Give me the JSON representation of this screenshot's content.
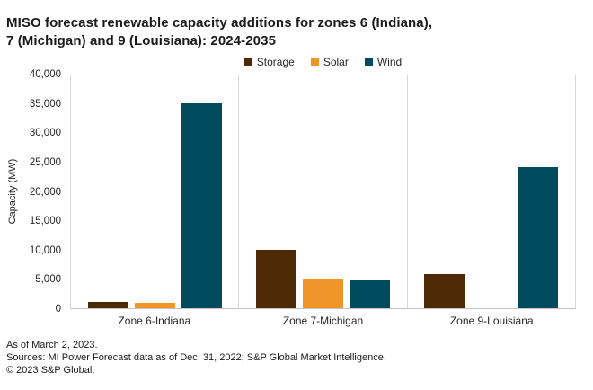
{
  "title": {
    "line1": "MISO forecast renewable capacity additions for zones 6 (Indiana),",
    "line2": "7 (Michigan) and 9 (Louisiana): 2024-2035"
  },
  "chart_data": {
    "type": "bar",
    "title": "MISO forecast renewable capacity additions for zones 6 (Indiana), 7 (Michigan) and 9 (Louisiana): 2024-2035",
    "categories": [
      "Zone 6-Indiana",
      "Zone 7-Michigan",
      "Zone 9-Louisiana"
    ],
    "series": [
      {
        "name": "Storage",
        "color": "#4d2a05",
        "values": [
          1100,
          10000,
          5800
        ]
      },
      {
        "name": "Solar",
        "color": "#f0952a",
        "values": [
          900,
          5100,
          0
        ]
      },
      {
        "name": "Wind",
        "color": "#004a5e",
        "values": [
          35000,
          4800,
          24000
        ]
      }
    ],
    "xlabel": "",
    "ylabel": "Capacity (MW)",
    "ylim": [
      0,
      40000
    ],
    "ytick_step": 5000,
    "ytick_labels": [
      "0",
      "5,000",
      "10,000",
      "15,000",
      "20,000",
      "25,000",
      "30,000",
      "35,000",
      "40,000"
    ],
    "grid": false,
    "legend_position": "top-center"
  },
  "footer": {
    "line1": "As of March 2, 2023.",
    "line2": "Sources: MI Power Forecast data as of Dec. 31, 2022; S&P Global Market Intelligence.",
    "line3": "© 2023 S&P Global."
  }
}
